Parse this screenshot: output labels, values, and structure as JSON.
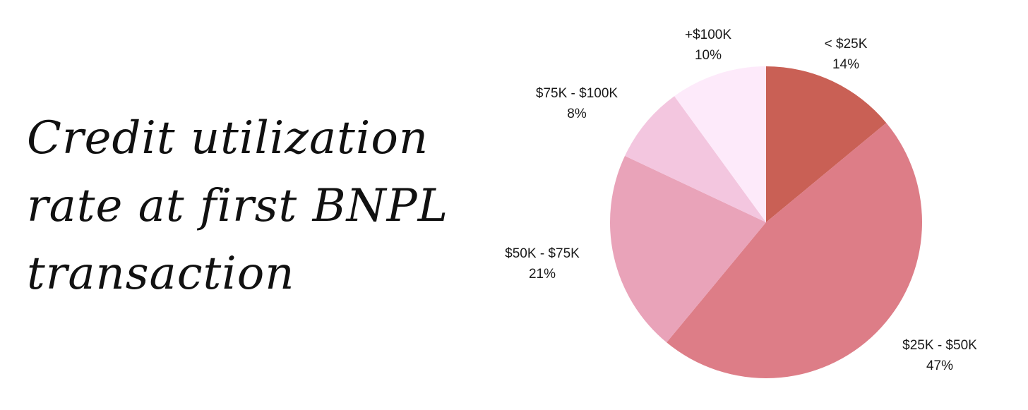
{
  "title": {
    "lines": [
      "Credit utilization",
      "rate at first BNPL",
      "transaction"
    ]
  },
  "chart_data": {
    "type": "pie",
    "title": "Credit utilization rate at first BNPL transaction",
    "start_angle": "12 o'clock",
    "direction": "clockwise",
    "slices": [
      {
        "label": "< $25K",
        "percent_label": "14%",
        "value": 14,
        "color": "#c96055"
      },
      {
        "label": "$25K - $50K",
        "percent_label": "47%",
        "value": 47,
        "color": "#dd7d87"
      },
      {
        "label": "$50K - $75K",
        "percent_label": "21%",
        "value": 21,
        "color": "#e9a3b9"
      },
      {
        "label": "$75K - $100K",
        "percent_label": "8%",
        "value": 8,
        "color": "#f3c6df"
      },
      {
        "label": "+$100K",
        "percent_label": "10%",
        "value": 10,
        "color": "#fdeafa"
      }
    ]
  }
}
